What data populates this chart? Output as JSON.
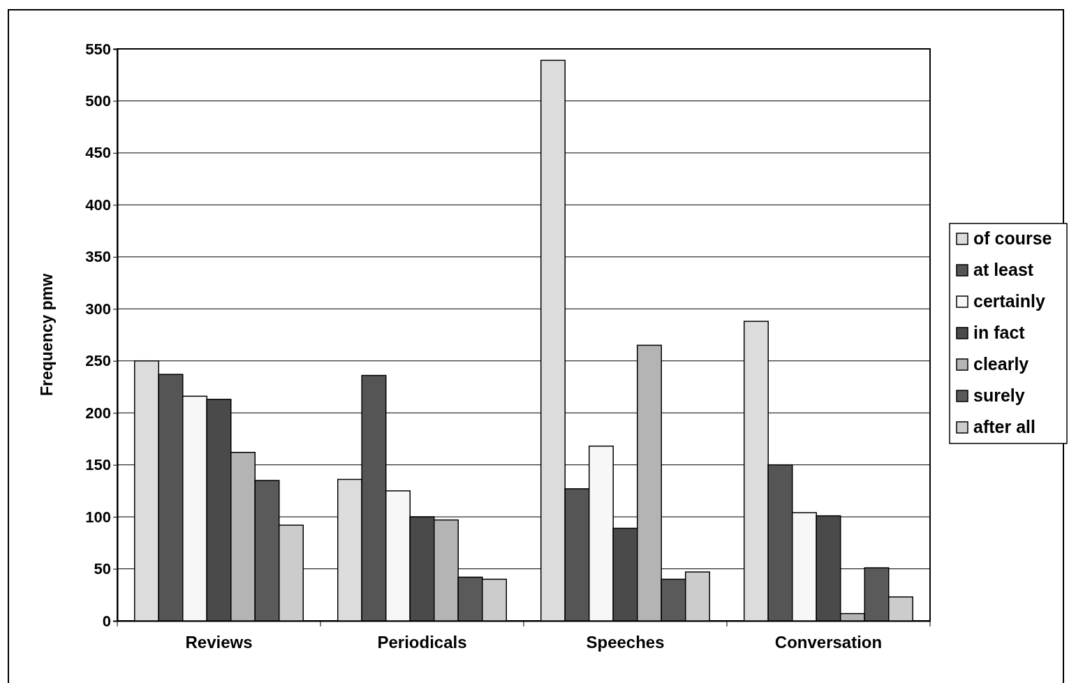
{
  "chart_data": {
    "type": "bar",
    "ylabel": "Frequency pmw",
    "categories": [
      "Reviews",
      "Periodicals",
      "Speeches",
      "Conversation"
    ],
    "series": [
      {
        "name": "of course",
        "color": "#dcdcdc",
        "values": [
          250,
          136,
          539,
          288
        ]
      },
      {
        "name": "at least",
        "color": "#555555",
        "values": [
          237,
          236,
          127,
          150
        ]
      },
      {
        "name": "certainly",
        "color": "#f7f7f7",
        "values": [
          216,
          125,
          168,
          104
        ]
      },
      {
        "name": "in fact",
        "color": "#4a4a4a",
        "values": [
          213,
          100,
          89,
          101
        ]
      },
      {
        "name": "clearly",
        "color": "#b4b4b4",
        "values": [
          162,
          97,
          265,
          7
        ]
      },
      {
        "name": "surely",
        "color": "#5a5a5a",
        "values": [
          135,
          42,
          40,
          51
        ]
      },
      {
        "name": "after all",
        "color": "#cccccc",
        "values": [
          92,
          40,
          47,
          23
        ]
      }
    ],
    "ylim": [
      0,
      550
    ],
    "yticks": [
      0,
      50,
      100,
      150,
      200,
      250,
      300,
      350,
      400,
      450,
      500,
      550
    ],
    "grid": "y",
    "legend": "right"
  }
}
